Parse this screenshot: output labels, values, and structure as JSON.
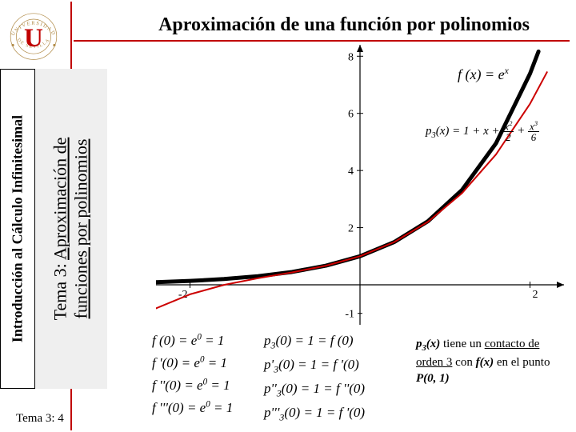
{
  "title": "Aproximación de una función por polinomios",
  "sidebar_outer": "Introducción al Cálculo Infinitesimal",
  "sidebar_inner_line1": "Tema 3:",
  "sidebar_inner_line2": "Aproximación de",
  "sidebar_inner_line3": "funciones por polinomios",
  "footer": "Tema 3: 4",
  "logo": {
    "ring_color": "#b08a46",
    "letter_color": "#c00000",
    "ring_text_top": "UNIVERSIDAD",
    "ring_text_bottom": "DE SEVILLA",
    "letter": "U"
  },
  "chart": {
    "type": "line",
    "xlim": [
      -2.4,
      2.4
    ],
    "ylim": [
      -1.4,
      8.4
    ],
    "xtick_labels": [
      "-2",
      "2"
    ],
    "xtick_vals": [
      -2,
      2
    ],
    "ytick_labels": [
      "2",
      "4",
      "6",
      "8"
    ],
    "ytick_vals": [
      2,
      4,
      6,
      8
    ],
    "axis_color": "#000000",
    "tick_fontsize": 14,
    "background": "#ffffff",
    "series": [
      {
        "name": "exp",
        "color": "#000000",
        "width": 5,
        "xs": [
          -2.4,
          -2.0,
          -1.6,
          -1.2,
          -0.8,
          -0.4,
          0.0,
          0.4,
          0.8,
          1.2,
          1.6,
          2.0,
          2.1
        ],
        "ys": [
          0.091,
          0.135,
          0.202,
          0.301,
          0.449,
          0.67,
          1.0,
          1.492,
          2.226,
          3.32,
          4.953,
          7.389,
          8.166
        ]
      },
      {
        "name": "p3",
        "color": "#cc0000",
        "width": 2,
        "xs": [
          -2.4,
          -2.0,
          -1.6,
          -1.2,
          -0.8,
          -0.4,
          0.0,
          0.4,
          0.8,
          1.2,
          1.6,
          2.0,
          2.2
        ],
        "ys": [
          -0.824,
          -0.333,
          -0.003,
          0.232,
          0.435,
          0.669,
          1.0,
          1.491,
          2.205,
          3.208,
          4.563,
          6.333,
          7.442
        ]
      }
    ]
  },
  "eq_f": "f (x) = e<sup>x</sup>",
  "eq_p_lead": "p<sub>3</sub>(x) = 1 + x + ",
  "eq_p_f1_num": "x<sup>2</sup>",
  "eq_p_f1_den": "2",
  "eq_p_f2_num": "x<sup>3</sup>",
  "eq_p_f2_den": "6",
  "caption_parts": {
    "p1": "p",
    "p1sub": "3",
    "p1after": "(x)",
    "t1": " tiene un ",
    "u1": "contacto de orden 3",
    "t2": " con ",
    "p2": "f(x)",
    "t3": " en el punto ",
    "p3": "P(0, 1)"
  },
  "eq_left": [
    "f (0) = e<sup>0</sup> = 1",
    "f '(0) = e<sup>0</sup> = 1",
    "f ''(0) = e<sup>0</sup> = 1",
    "f '''(0) = e<sup>0</sup> = 1"
  ],
  "eq_right": [
    "p<sub>3</sub>(0) = 1 = f (0)",
    "p'<sub>3</sub>(0) = 1 = f '(0)",
    "p''<sub>3</sub>(0) = 1 = f ''(0)",
    "p'''<sub>3</sub>(0) = 1 = f '(0)"
  ]
}
